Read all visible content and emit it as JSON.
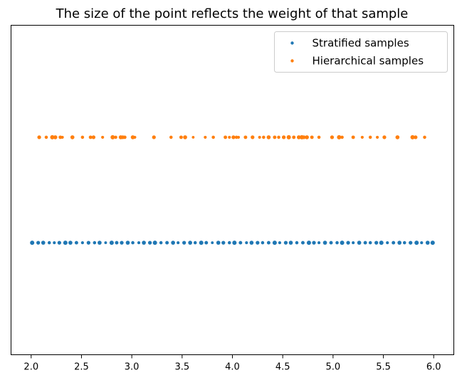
{
  "chart_data": {
    "type": "scatter",
    "title": "The size of the point reflects the weight of that sample",
    "xlabel": "",
    "ylabel": "",
    "xlim": [
      1.8,
      6.2
    ],
    "ylim": [
      0,
      1
    ],
    "x_ticks": [
      "2.0",
      "2.5",
      "3.0",
      "3.5",
      "4.0",
      "4.5",
      "5.0",
      "5.5",
      "6.0"
    ],
    "x_tick_values": [
      2.0,
      2.5,
      3.0,
      3.5,
      4.0,
      4.5,
      5.0,
      5.5,
      6.0
    ],
    "y_axis_visible": false,
    "grid": false,
    "legend": {
      "placement": "top-right",
      "entries": [
        "Stratified samples",
        "Hierarchical samples"
      ]
    },
    "series": [
      {
        "name": "Stratified samples",
        "color": "#1f77b4",
        "y": 0.34,
        "x": [
          2.01,
          2.07,
          2.12,
          2.18,
          2.23,
          2.28,
          2.34,
          2.39,
          2.45,
          2.51,
          2.57,
          2.63,
          2.68,
          2.74,
          2.8,
          2.85,
          2.9,
          2.96,
          3.01,
          3.07,
          3.12,
          3.18,
          3.23,
          3.29,
          3.35,
          3.41,
          3.46,
          3.52,
          3.58,
          3.63,
          3.69,
          3.74,
          3.8,
          3.86,
          3.91,
          3.97,
          4.02,
          4.08,
          4.14,
          4.19,
          4.25,
          4.3,
          4.36,
          4.42,
          4.47,
          4.53,
          4.58,
          4.64,
          4.7,
          4.76,
          4.81,
          4.86,
          4.92,
          4.98,
          5.04,
          5.09,
          5.15,
          5.2,
          5.26,
          5.32,
          5.37,
          5.43,
          5.48,
          5.54,
          5.6,
          5.66,
          5.71,
          5.77,
          5.83,
          5.88,
          5.94,
          5.99
        ],
        "weights": [
          1.0,
          0.8,
          0.9,
          0.6,
          0.5,
          0.8,
          1.0,
          0.9,
          0.7,
          0.5,
          0.8,
          0.6,
          0.9,
          0.4,
          1.0,
          0.7,
          0.8,
          0.9,
          0.6,
          0.5,
          0.9,
          0.8,
          1.0,
          0.6,
          0.7,
          0.9,
          0.5,
          0.8,
          0.9,
          0.6,
          1.0,
          0.7,
          0.4,
          0.9,
          0.8,
          0.6,
          1.0,
          0.7,
          0.5,
          0.9,
          0.8,
          0.6,
          0.7,
          1.0,
          0.5,
          0.8,
          0.9,
          0.6,
          0.7,
          1.0,
          0.8,
          0.5,
          0.9,
          0.7,
          0.6,
          1.0,
          0.8,
          0.5,
          0.9,
          0.7,
          0.6,
          0.8,
          1.0,
          0.5,
          0.7,
          0.9,
          0.6,
          0.8,
          1.0,
          0.5,
          0.9,
          1.0
        ]
      },
      {
        "name": "Hierarchical samples",
        "color": "#ff7f0e",
        "y": 0.66,
        "x": [
          2.08,
          2.15,
          2.21,
          2.24,
          2.29,
          2.31,
          2.41,
          2.51,
          2.59,
          2.62,
          2.71,
          2.81,
          2.84,
          2.89,
          2.91,
          2.93,
          3.01,
          3.03,
          3.22,
          3.39,
          3.49,
          3.53,
          3.61,
          3.73,
          3.81,
          3.93,
          3.97,
          4.01,
          4.04,
          4.06,
          4.13,
          4.2,
          4.27,
          4.31,
          4.36,
          4.42,
          4.46,
          4.51,
          4.56,
          4.61,
          4.66,
          4.69,
          4.71,
          4.74,
          4.79,
          4.86,
          4.99,
          5.06,
          5.09,
          5.2,
          5.29,
          5.37,
          5.44,
          5.51,
          5.64,
          5.79,
          5.82,
          5.91
        ],
        "weights": [
          0.8,
          0.6,
          1.0,
          0.9,
          0.7,
          0.5,
          0.9,
          0.6,
          0.7,
          0.8,
          0.5,
          1.0,
          0.6,
          0.9,
          0.8,
          0.7,
          0.9,
          0.5,
          0.8,
          0.6,
          0.7,
          0.9,
          0.4,
          0.5,
          0.6,
          0.7,
          0.5,
          0.8,
          0.6,
          0.5,
          0.7,
          0.8,
          0.5,
          0.6,
          0.9,
          0.7,
          0.6,
          0.8,
          1.0,
          0.7,
          0.9,
          1.0,
          0.8,
          0.9,
          0.7,
          0.6,
          0.8,
          1.0,
          0.6,
          0.7,
          0.5,
          0.6,
          0.5,
          0.8,
          0.9,
          1.0,
          0.8,
          0.6
        ]
      }
    ]
  }
}
